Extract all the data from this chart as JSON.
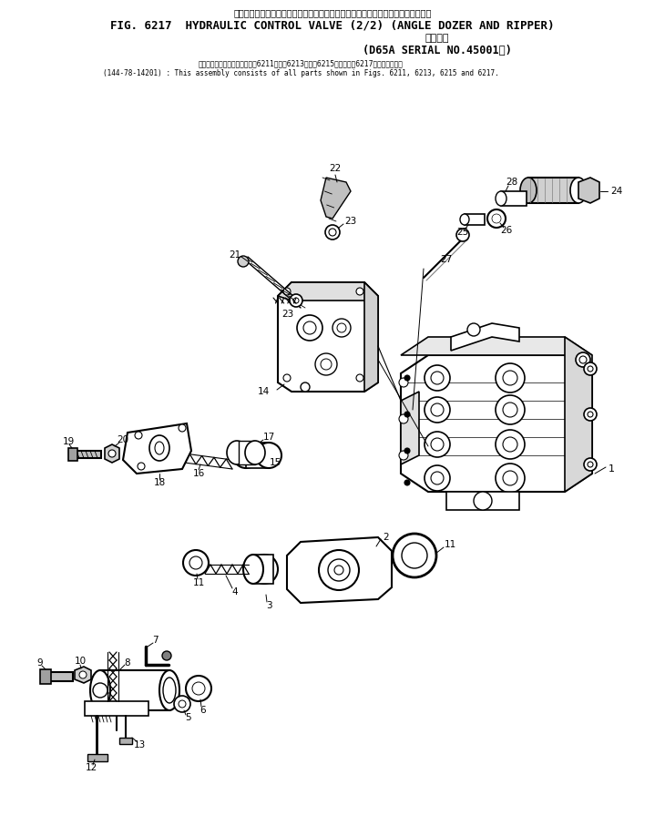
{
  "title_jp1": "ハイドロリック　コントロール　バルブ　　　アングル　ドーザ　および　リッパ",
  "title_en": "FIG. 6217  HYDRAULIC CONTROL VALVE (2/2) (ANGLE DOZER AND RIPPER)",
  "title_jp2": "適用号機",
  "title_serial": "(D65A SERIAL NO.45001－)",
  "note_jp": "このアセンブリの構成部品は第6211図、第6213図、第6215図および第6217図を含みます。",
  "note_en": "(144-78-14201) : This assembly consists of all parts shown in Figs. 6211, 6213, 6215 and 6217.",
  "bg_color": "#ffffff",
  "line_color": "#000000",
  "fig_width": 7.3,
  "fig_height": 9.18
}
